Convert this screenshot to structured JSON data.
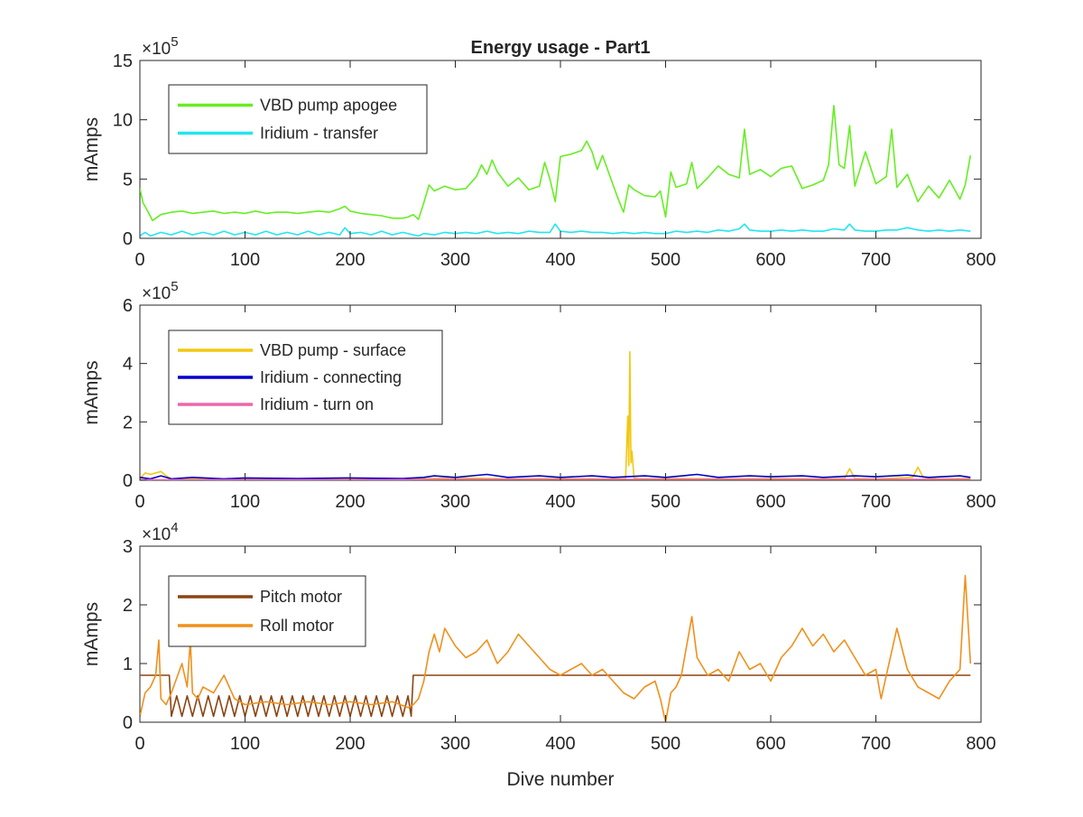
{
  "chart_data": [
    {
      "type": "line",
      "title": "Energy usage - Part1",
      "xlabel": "",
      "ylabel": "mAmps",
      "exponent_label": "×10^5",
      "exponent_base": "×10",
      "exponent_power": "5",
      "xlim": [
        0,
        800
      ],
      "ylim": [
        0,
        15
      ],
      "x_ticks": [
        0,
        100,
        200,
        300,
        400,
        500,
        600,
        700,
        800
      ],
      "y_ticks": [
        0,
        5,
        10,
        15
      ],
      "grid": false,
      "legend_placement": "top-left",
      "series": [
        {
          "name": "VBD pump apogee",
          "color": "#66ee22",
          "x": [
            0,
            3,
            8,
            12,
            20,
            30,
            40,
            50,
            60,
            70,
            80,
            90,
            100,
            110,
            120,
            130,
            140,
            150,
            160,
            170,
            180,
            190,
            195,
            200,
            210,
            220,
            230,
            240,
            250,
            255,
            260,
            265,
            270,
            275,
            280,
            290,
            300,
            310,
            320,
            325,
            330,
            335,
            340,
            350,
            360,
            370,
            380,
            385,
            390,
            395,
            400,
            410,
            420,
            425,
            430,
            435,
            440,
            450,
            455,
            460,
            465,
            470,
            480,
            490,
            495,
            500,
            505,
            510,
            520,
            525,
            530,
            540,
            550,
            560,
            570,
            575,
            580,
            590,
            600,
            610,
            620,
            630,
            640,
            650,
            655,
            660,
            665,
            670,
            675,
            680,
            690,
            700,
            710,
            715,
            720,
            730,
            740,
            750,
            760,
            770,
            780,
            785,
            790
          ],
          "y": [
            4.2,
            3.0,
            2.2,
            1.5,
            2.0,
            2.2,
            2.3,
            2.1,
            2.2,
            2.3,
            2.1,
            2.2,
            2.1,
            2.3,
            2.1,
            2.2,
            2.2,
            2.1,
            2.2,
            2.3,
            2.2,
            2.5,
            2.7,
            2.3,
            2.1,
            2.0,
            1.9,
            1.7,
            1.7,
            1.8,
            2.0,
            1.6,
            3.0,
            4.5,
            4.0,
            4.4,
            4.1,
            4.2,
            5.2,
            6.2,
            5.4,
            6.6,
            5.6,
            4.4,
            5.1,
            4.1,
            4.4,
            6.4,
            5.0,
            3.1,
            6.9,
            7.1,
            7.4,
            8.2,
            7.3,
            5.8,
            7.0,
            4.5,
            3.3,
            2.2,
            4.5,
            4.1,
            3.6,
            3.5,
            4.0,
            1.8,
            5.6,
            4.3,
            4.6,
            6.4,
            4.2,
            5.1,
            6.1,
            5.4,
            5.1,
            9.2,
            5.4,
            5.8,
            5.2,
            5.9,
            6.1,
            4.2,
            4.5,
            4.9,
            6.2,
            11.2,
            6.2,
            5.9,
            9.5,
            4.4,
            7.3,
            4.6,
            5.2,
            9.2,
            4.3,
            5.4,
            3.1,
            4.4,
            3.4,
            4.9,
            3.3,
            4.5,
            7.0
          ]
        },
        {
          "name": "Iridium - transfer",
          "color": "#22e6ee",
          "x": [
            0,
            5,
            10,
            20,
            30,
            40,
            50,
            60,
            70,
            80,
            90,
            100,
            110,
            120,
            130,
            140,
            150,
            160,
            170,
            180,
            190,
            195,
            200,
            210,
            220,
            230,
            240,
            250,
            260,
            265,
            270,
            280,
            290,
            300,
            310,
            320,
            330,
            340,
            350,
            360,
            370,
            380,
            390,
            395,
            400,
            410,
            420,
            430,
            440,
            450,
            460,
            470,
            480,
            490,
            500,
            510,
            520,
            530,
            540,
            550,
            560,
            570,
            575,
            580,
            590,
            600,
            610,
            620,
            630,
            640,
            650,
            660,
            670,
            675,
            680,
            690,
            700,
            710,
            720,
            730,
            740,
            750,
            760,
            770,
            780,
            790
          ],
          "y": [
            0.2,
            0.5,
            0.2,
            0.5,
            0.3,
            0.6,
            0.3,
            0.5,
            0.3,
            0.6,
            0.3,
            0.5,
            0.3,
            0.6,
            0.3,
            0.5,
            0.3,
            0.6,
            0.3,
            0.5,
            0.3,
            0.9,
            0.4,
            0.5,
            0.3,
            0.6,
            0.3,
            0.5,
            0.3,
            0.2,
            0.4,
            0.3,
            0.5,
            0.4,
            0.5,
            0.4,
            0.6,
            0.4,
            0.5,
            0.4,
            0.6,
            0.5,
            0.5,
            1.2,
            0.6,
            0.5,
            0.6,
            0.5,
            0.5,
            0.4,
            0.5,
            0.4,
            0.5,
            0.4,
            0.4,
            0.6,
            0.5,
            0.6,
            0.5,
            0.7,
            0.6,
            0.8,
            1.2,
            0.7,
            0.6,
            0.6,
            0.7,
            0.6,
            0.7,
            0.6,
            0.6,
            0.8,
            0.7,
            1.2,
            0.7,
            0.6,
            0.6,
            0.7,
            0.7,
            0.9,
            0.7,
            0.6,
            0.7,
            0.6,
            0.7,
            0.6
          ]
        }
      ]
    },
    {
      "type": "line",
      "title": "",
      "xlabel": "",
      "ylabel": "mAmps",
      "exponent_label": "×10^5",
      "exponent_base": "×10",
      "exponent_power": "5",
      "xlim": [
        0,
        800
      ],
      "ylim": [
        0,
        6
      ],
      "x_ticks": [
        0,
        100,
        200,
        300,
        400,
        500,
        600,
        700,
        800
      ],
      "y_ticks": [
        0,
        2,
        4,
        6
      ],
      "grid": false,
      "legend_placement": "top-left",
      "series": [
        {
          "name": "VBD pump - surface",
          "color": "#f2c811",
          "x": [
            0,
            5,
            10,
            20,
            25,
            30,
            50,
            100,
            150,
            200,
            250,
            300,
            350,
            400,
            450,
            462,
            464,
            465,
            466,
            467,
            468,
            470,
            480,
            500,
            550,
            600,
            650,
            670,
            675,
            680,
            700,
            735,
            740,
            745,
            760,
            790
          ],
          "y": [
            0.05,
            0.25,
            0.2,
            0.3,
            0.15,
            0.05,
            0.04,
            0.05,
            0.04,
            0.05,
            0.04,
            0.08,
            0.05,
            0.06,
            0.05,
            0.06,
            2.2,
            0.5,
            4.4,
            0.6,
            1.0,
            0.07,
            0.05,
            0.06,
            0.05,
            0.06,
            0.05,
            0.06,
            0.4,
            0.06,
            0.05,
            0.1,
            0.45,
            0.1,
            0.05,
            0.06
          ]
        },
        {
          "name": "Iridium - connecting",
          "color": "#0000cc",
          "x": [
            0,
            10,
            20,
            30,
            50,
            80,
            100,
            150,
            200,
            250,
            270,
            280,
            300,
            330,
            350,
            380,
            400,
            430,
            450,
            480,
            500,
            530,
            550,
            580,
            600,
            630,
            650,
            680,
            700,
            730,
            750,
            780,
            790
          ],
          "y": [
            0.1,
            0.05,
            0.15,
            0.05,
            0.1,
            0.05,
            0.08,
            0.06,
            0.08,
            0.06,
            0.1,
            0.15,
            0.1,
            0.2,
            0.1,
            0.15,
            0.1,
            0.15,
            0.1,
            0.15,
            0.1,
            0.2,
            0.1,
            0.15,
            0.12,
            0.15,
            0.1,
            0.15,
            0.12,
            0.18,
            0.1,
            0.15,
            0.1
          ]
        },
        {
          "name": "Iridium - turn on",
          "color": "#ee66aa",
          "x": [
            0,
            100,
            200,
            300,
            400,
            500,
            600,
            700,
            790
          ],
          "y": [
            0.02,
            0.02,
            0.02,
            0.03,
            0.03,
            0.03,
            0.03,
            0.03,
            0.03
          ]
        }
      ]
    },
    {
      "type": "line",
      "title": "",
      "xlabel": "Dive number",
      "ylabel": "mAmps",
      "exponent_label": "×10^4",
      "exponent_base": "×10",
      "exponent_power": "4",
      "xlim": [
        0,
        800
      ],
      "ylim": [
        0,
        3
      ],
      "x_ticks": [
        0,
        100,
        200,
        300,
        400,
        500,
        600,
        700,
        800
      ],
      "y_ticks": [
        0,
        1,
        2,
        3
      ],
      "grid": false,
      "legend_placement": "top-left",
      "series": [
        {
          "name": "Pitch motor",
          "color": "#8b4513",
          "x": [
            0,
            28,
            30,
            35,
            40,
            45,
            50,
            55,
            60,
            65,
            70,
            75,
            80,
            85,
            90,
            95,
            100,
            105,
            110,
            115,
            120,
            125,
            130,
            135,
            140,
            145,
            150,
            155,
            160,
            165,
            170,
            175,
            180,
            185,
            190,
            195,
            200,
            205,
            210,
            215,
            220,
            225,
            230,
            235,
            240,
            245,
            250,
            255,
            258,
            260,
            300,
            350,
            400,
            450,
            500,
            550,
            600,
            650,
            700,
            750,
            790
          ],
          "y": [
            0.8,
            0.8,
            0.1,
            0.45,
            0.1,
            0.45,
            0.1,
            0.45,
            0.1,
            0.45,
            0.1,
            0.45,
            0.1,
            0.45,
            0.1,
            0.45,
            0.1,
            0.45,
            0.1,
            0.45,
            0.1,
            0.45,
            0.1,
            0.45,
            0.1,
            0.45,
            0.1,
            0.45,
            0.1,
            0.45,
            0.1,
            0.45,
            0.1,
            0.45,
            0.1,
            0.45,
            0.1,
            0.45,
            0.1,
            0.45,
            0.1,
            0.45,
            0.1,
            0.45,
            0.1,
            0.45,
            0.1,
            0.45,
            0.1,
            0.8,
            0.8,
            0.8,
            0.8,
            0.8,
            0.8,
            0.8,
            0.8,
            0.8,
            0.8,
            0.8,
            0.8
          ]
        },
        {
          "name": "Roll motor",
          "color": "#f0901c",
          "x": [
            0,
            5,
            10,
            15,
            18,
            20,
            25,
            30,
            40,
            45,
            48,
            50,
            55,
            60,
            70,
            80,
            90,
            100,
            120,
            140,
            160,
            180,
            200,
            220,
            240,
            255,
            260,
            265,
            270,
            275,
            280,
            285,
            290,
            300,
            310,
            320,
            330,
            340,
            350,
            360,
            370,
            380,
            390,
            400,
            410,
            420,
            430,
            440,
            450,
            460,
            470,
            480,
            490,
            495,
            500,
            505,
            510,
            515,
            520,
            525,
            530,
            540,
            550,
            560,
            570,
            580,
            590,
            600,
            610,
            620,
            630,
            640,
            650,
            660,
            670,
            680,
            690,
            700,
            705,
            710,
            720,
            730,
            740,
            750,
            760,
            770,
            780,
            785,
            790
          ],
          "y": [
            0.1,
            0.5,
            0.6,
            0.8,
            1.4,
            0.4,
            0.3,
            0.5,
            1.0,
            0.6,
            1.4,
            0.5,
            0.4,
            0.6,
            0.5,
            0.8,
            0.4,
            0.3,
            0.35,
            0.3,
            0.35,
            0.3,
            0.35,
            0.3,
            0.35,
            0.25,
            0.3,
            0.4,
            0.7,
            1.2,
            1.5,
            1.2,
            1.6,
            1.3,
            1.1,
            1.2,
            1.4,
            1.0,
            1.2,
            1.5,
            1.3,
            1.1,
            0.9,
            0.8,
            0.9,
            1.0,
            0.8,
            0.9,
            0.7,
            0.5,
            0.4,
            0.6,
            0.7,
            0.4,
            0.0,
            0.5,
            0.6,
            0.8,
            1.3,
            1.8,
            1.1,
            0.8,
            0.9,
            0.7,
            1.2,
            0.9,
            1.0,
            0.7,
            1.1,
            1.3,
            1.6,
            1.3,
            1.5,
            1.2,
            1.4,
            1.1,
            0.8,
            0.9,
            0.4,
            0.8,
            1.6,
            0.9,
            0.6,
            0.5,
            0.4,
            0.7,
            0.9,
            2.5,
            1.0
          ]
        }
      ]
    }
  ]
}
